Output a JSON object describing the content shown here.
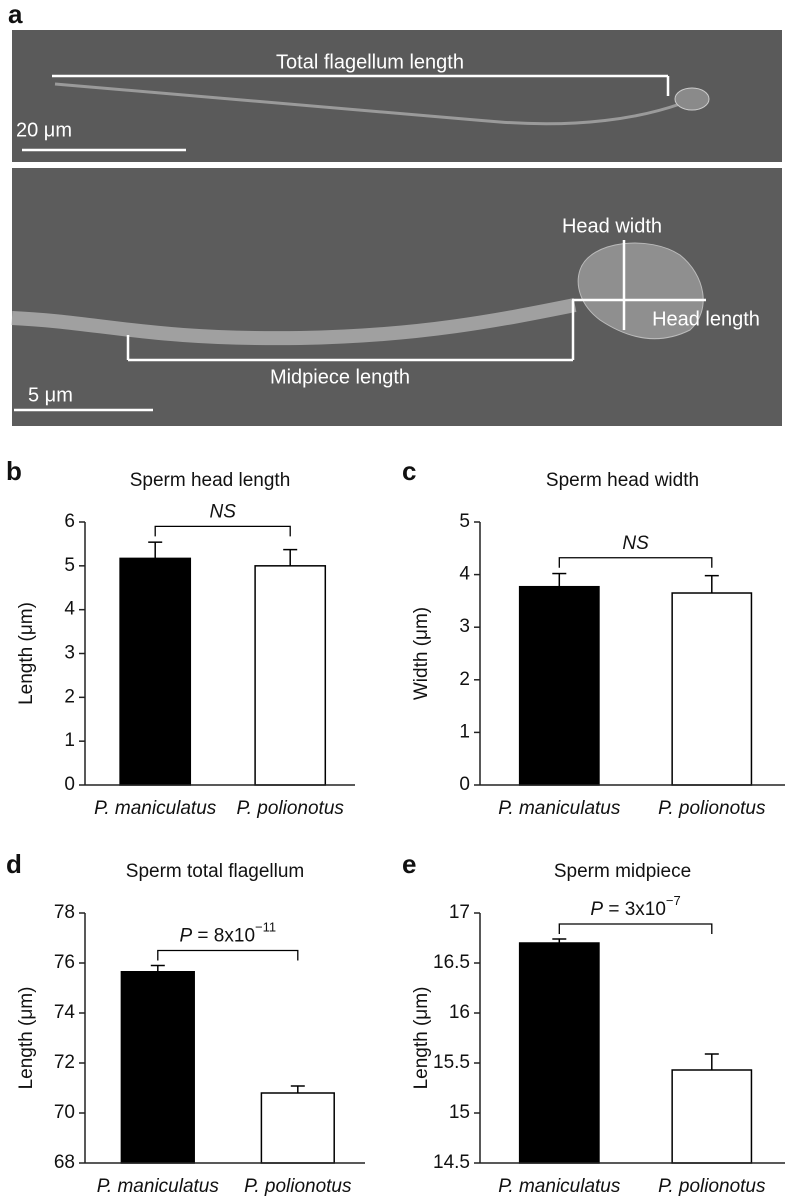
{
  "panel_a": {
    "letter": "a",
    "flagellum_label": "Total flagellum length",
    "scale_top": "20 μm",
    "head_width_label": "Head width",
    "head_length_label": "Head length",
    "midpiece_label": "Midpiece length",
    "scale_bottom": "5 μm"
  },
  "chart_data": [
    {
      "type": "bar",
      "panel": "b",
      "title": "Sperm head length",
      "y_label": "Length (μm)",
      "categories": [
        "P. maniculatus",
        "P. polionotus"
      ],
      "values": [
        5.17,
        5.0
      ],
      "errors": [
        0.37,
        0.37
      ],
      "colors": [
        "#000000",
        "#ffffff"
      ],
      "ylim": [
        0,
        6
      ],
      "yticks": [
        0,
        1,
        2,
        3,
        4,
        5,
        6
      ],
      "annotation": [
        "NS"
      ]
    },
    {
      "type": "bar",
      "panel": "c",
      "title": "Sperm head width",
      "y_label": "Width (μm)",
      "categories": [
        "P. maniculatus",
        "P. polionotus"
      ],
      "values": [
        3.77,
        3.65
      ],
      "errors": [
        0.25,
        0.33
      ],
      "colors": [
        "#000000",
        "#ffffff"
      ],
      "ylim": [
        0,
        5
      ],
      "yticks": [
        0,
        1,
        2,
        3,
        4,
        5
      ],
      "annotation": [
        "NS"
      ]
    },
    {
      "type": "bar",
      "panel": "d",
      "title": "Sperm total flagellum",
      "y_label": "Length (μm)",
      "categories": [
        "P. maniculatus",
        "P. polionotus"
      ],
      "values": [
        75.65,
        70.8
      ],
      "errors": [
        0.25,
        0.28
      ],
      "colors": [
        "#000000",
        "#ffffff"
      ],
      "ylim": [
        68,
        78
      ],
      "yticks": [
        68,
        70,
        72,
        74,
        76,
        78
      ],
      "annotation": [
        "P",
        " = 8x10",
        "−11"
      ]
    },
    {
      "type": "bar",
      "panel": "e",
      "title": "Sperm midpiece",
      "y_label": "Length (μm)",
      "categories": [
        "P. maniculatus",
        "P. polionotus"
      ],
      "values": [
        16.7,
        15.43
      ],
      "errors": [
        0.04,
        0.16
      ],
      "colors": [
        "#000000",
        "#ffffff"
      ],
      "ylim": [
        14.5,
        17
      ],
      "yticks": [
        14.5,
        15,
        15.5,
        16,
        16.5,
        17
      ],
      "annotation": [
        "P",
        " = 3x10",
        "−7"
      ]
    }
  ]
}
